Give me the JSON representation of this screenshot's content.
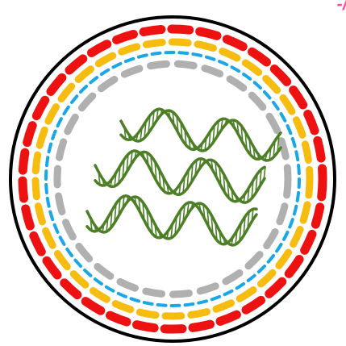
{
  "corner_label": "-/",
  "colors": {
    "outline": "#000000",
    "ring_red": "#ee1111",
    "ring_yellow": "#f7bc10",
    "ring_blue": "#1aa7e6",
    "ring_gray": "#b0b0b0",
    "dna_strand": "#4d7f27",
    "corner_label": "#ff4fa0"
  },
  "rings": [
    {
      "name": "outer-red-ring",
      "color": "ring_red",
      "style": "thick-dashed"
    },
    {
      "name": "yellow-ring",
      "color": "ring_yellow",
      "style": "thick-dashed"
    },
    {
      "name": "blue-ring",
      "color": "ring_blue",
      "style": "thin-dashed"
    },
    {
      "name": "inner-gray-ring",
      "color": "ring_gray",
      "style": "thick-dashed"
    }
  ],
  "strands": [
    {
      "name": "dna-helix-top"
    },
    {
      "name": "dna-helix-middle"
    },
    {
      "name": "dna-helix-bottom"
    }
  ]
}
